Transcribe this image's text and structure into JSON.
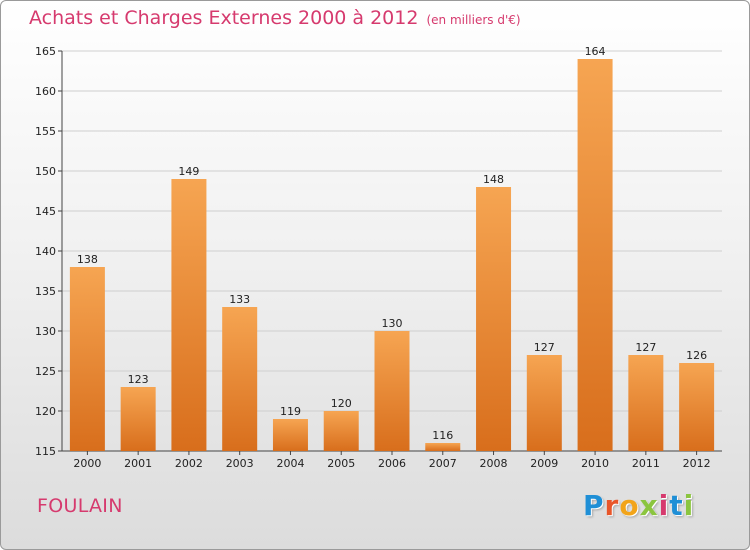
{
  "title": "Achats et Charges Externes 2000 à 2012",
  "unit": "(en milliers d'€)",
  "commune": "FOULAIN",
  "logo": {
    "letters": [
      "P",
      "r",
      "o",
      "x",
      "i",
      "t",
      "i"
    ],
    "colors": [
      "#1f8fd6",
      "#e8562a",
      "#f2a41a",
      "#8bc53f",
      "#d63a6e",
      "#1f8fd6",
      "#8bc53f"
    ]
  },
  "colors": {
    "bar_top": "#f6a552",
    "bar_bottom": "#d86e1c",
    "title": "#d63a6e"
  },
  "chart_data": {
    "type": "bar",
    "categories": [
      "2000",
      "2001",
      "2002",
      "2003",
      "2004",
      "2005",
      "2006",
      "2007",
      "2008",
      "2009",
      "2010",
      "2011",
      "2012"
    ],
    "values": [
      138,
      123,
      149,
      133,
      119,
      120,
      130,
      116,
      148,
      127,
      164,
      127,
      126
    ],
    "ylim": [
      115,
      165
    ],
    "yticks": [
      115,
      120,
      125,
      130,
      135,
      140,
      145,
      150,
      155,
      160,
      165
    ],
    "grid": true
  }
}
